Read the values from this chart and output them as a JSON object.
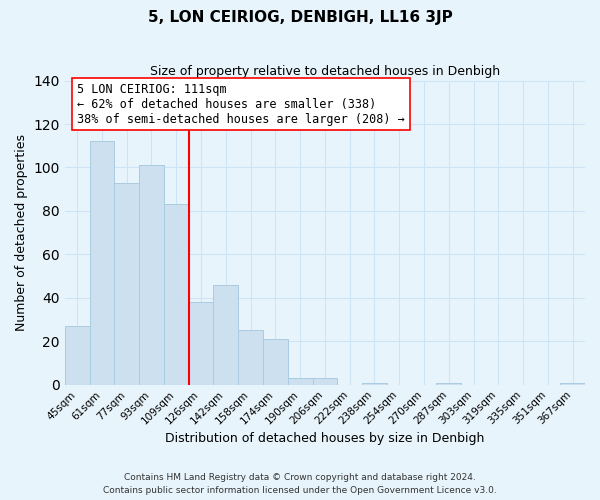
{
  "title": "5, LON CEIRIOG, DENBIGH, LL16 3JP",
  "subtitle": "Size of property relative to detached houses in Denbigh",
  "xlabel": "Distribution of detached houses by size in Denbigh",
  "ylabel": "Number of detached properties",
  "footer_line1": "Contains HM Land Registry data © Crown copyright and database right 2024.",
  "footer_line2": "Contains public sector information licensed under the Open Government Licence v3.0.",
  "categories": [
    "45sqm",
    "61sqm",
    "77sqm",
    "93sqm",
    "109sqm",
    "126sqm",
    "142sqm",
    "158sqm",
    "174sqm",
    "190sqm",
    "206sqm",
    "222sqm",
    "238sqm",
    "254sqm",
    "270sqm",
    "287sqm",
    "303sqm",
    "319sqm",
    "335sqm",
    "351sqm",
    "367sqm"
  ],
  "values": [
    27,
    112,
    93,
    101,
    83,
    38,
    46,
    25,
    21,
    3,
    3,
    0,
    1,
    0,
    0,
    1,
    0,
    0,
    0,
    0,
    1
  ],
  "bar_color": "#cce0f0",
  "bar_edge_color": "#aacce0",
  "vline_x_index": 4.5,
  "vline_color": "red",
  "annotation_title": "5 LON CEIRIOG: 111sqm",
  "annotation_line1": "← 62% of detached houses are smaller (338)",
  "annotation_line2": "38% of semi-detached houses are larger (208) →",
  "annotation_box_color": "white",
  "annotation_box_edge_color": "red",
  "ylim": [
    0,
    140
  ],
  "yticks": [
    0,
    20,
    40,
    60,
    80,
    100,
    120,
    140
  ],
  "grid_color": "#cce4f5",
  "background_color": "#e8f4fb"
}
